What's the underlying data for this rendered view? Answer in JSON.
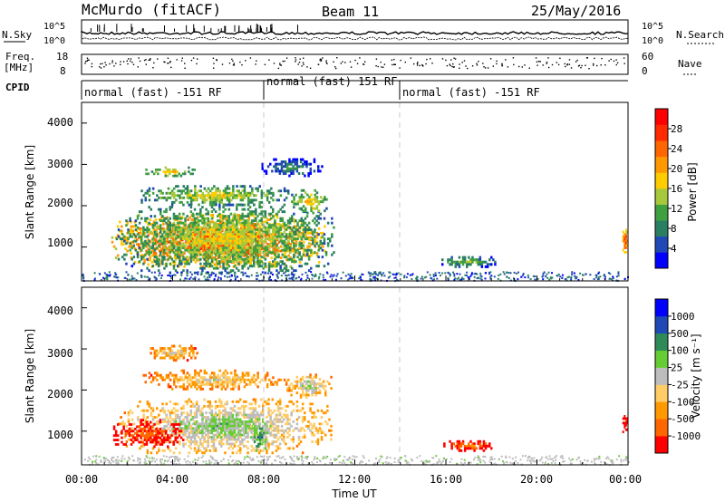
{
  "header": {
    "station": "McMurdo (fitACF)",
    "beam": "Beam 11",
    "date": "25/May/2016"
  },
  "strip": {
    "nsky_label": "N.Sky",
    "nsearch_label": "N.Search",
    "noise_ticks_left": [
      "10^5",
      "10^0"
    ],
    "noise_ticks_right": [
      "10^5",
      "10^0"
    ],
    "freq_label_1": "Freq.",
    "freq_label_2": "[MHz]",
    "freq_ticks": [
      "18",
      "8"
    ],
    "nave_label": "Nave",
    "nave_ticks": [
      "60",
      "0"
    ],
    "cpid_label": "CPID",
    "cpid_segments": [
      {
        "label": "normal (fast) -151 RF",
        "start_h": 0,
        "end_h": 8
      },
      {
        "label": "normal (fast) 151 RF",
        "start_h": 8,
        "end_h": 14
      },
      {
        "label": "normal (fast) -151 RF",
        "start_h": 14,
        "end_h": 24
      }
    ]
  },
  "time_axis": {
    "label": "Time UT",
    "ticks": [
      "00:00",
      "04:00",
      "08:00",
      "12:00",
      "16:00",
      "20:00",
      "00:00"
    ],
    "range_h": [
      0,
      24
    ],
    "mode_change_h": [
      8,
      14
    ]
  },
  "chart_data": [
    {
      "type": "heatmap",
      "quantity": "power",
      "ylabel": "Slant Range [km]",
      "yticks": [
        "1000",
        "2000",
        "3000",
        "4000"
      ],
      "ylim": [
        180,
        4500
      ],
      "cbar_label": "Power [dB]",
      "cbar_ticks": [
        "4",
        "8",
        "12",
        "16",
        "20",
        "24",
        "28"
      ],
      "cbar_range": [
        0,
        32
      ],
      "colors": [
        "#0000ff",
        "#1f49b4",
        "#2a7f62",
        "#40a040",
        "#a8c83c",
        "#ffcc00",
        "#ff9900",
        "#ff6600",
        "#ff2a00",
        "#ff0000"
      ],
      "blobs": [
        {
          "t0": 1.3,
          "t1": 10.8,
          "r0": 500,
          "r1": 1800,
          "level": 0.88
        },
        {
          "t0": 1.5,
          "t1": 11.2,
          "r0": 350,
          "r1": 2050,
          "level": 0.55
        },
        {
          "t0": 2.6,
          "t1": 9.2,
          "r0": 2000,
          "r1": 2500,
          "level": 0.55
        },
        {
          "t0": 2.8,
          "t1": 5.0,
          "r0": 2700,
          "r1": 2950,
          "level": 0.6
        },
        {
          "t0": 7.9,
          "t1": 10.6,
          "r0": 2700,
          "r1": 3150,
          "level": 0.35
        },
        {
          "t0": 9.2,
          "t1": 10.8,
          "r0": 1800,
          "r1": 2400,
          "level": 0.6
        },
        {
          "t0": 15.8,
          "t1": 18.2,
          "r0": 500,
          "r1": 780,
          "level": 0.45
        },
        {
          "t0": 23.75,
          "t1": 24.0,
          "r0": 850,
          "r1": 1500,
          "level": 0.85
        }
      ]
    },
    {
      "type": "heatmap",
      "quantity": "velocity",
      "ylabel": "Slant Range [km]",
      "yticks": [
        "1000",
        "2000",
        "3000",
        "4000"
      ],
      "ylim": [
        180,
        4500
      ],
      "cbar_label": "Velocity [m s⁻¹]",
      "cbar_ticks": [
        "1000",
        "500",
        "100",
        "25",
        "-25",
        "-100",
        "-500",
        "-1000"
      ],
      "cbar_range": [
        -1200,
        1200
      ],
      "colors": [
        "#ff0000",
        "#ff6600",
        "#ff9900",
        "#ffcc66",
        "#bdbdbd",
        "#66cc33",
        "#2e8b57",
        "#1f49b4",
        "#0000ff"
      ],
      "blobs": [
        {
          "t0": 1.6,
          "t1": 11.0,
          "r0": 450,
          "r1": 1800,
          "level": 0.62
        },
        {
          "t0": 1.3,
          "t1": 4.5,
          "r0": 600,
          "r1": 1300,
          "level": 0.22
        },
        {
          "t0": 7.4,
          "t1": 8.2,
          "r0": 500,
          "r1": 1200,
          "level": 0.8
        },
        {
          "t0": 2.6,
          "t1": 9.2,
          "r0": 2000,
          "r1": 2500,
          "level": 0.48
        },
        {
          "t0": 3.0,
          "t1": 5.2,
          "r0": 2700,
          "r1": 3100,
          "level": 0.5
        },
        {
          "t0": 9.0,
          "t1": 11.0,
          "r0": 1800,
          "r1": 2400,
          "level": 0.58
        },
        {
          "t0": 15.8,
          "t1": 18.2,
          "r0": 500,
          "r1": 780,
          "level": 0.25
        },
        {
          "t0": 23.75,
          "t1": 24.0,
          "r0": 850,
          "r1": 1500,
          "level": 0.18
        }
      ]
    }
  ]
}
